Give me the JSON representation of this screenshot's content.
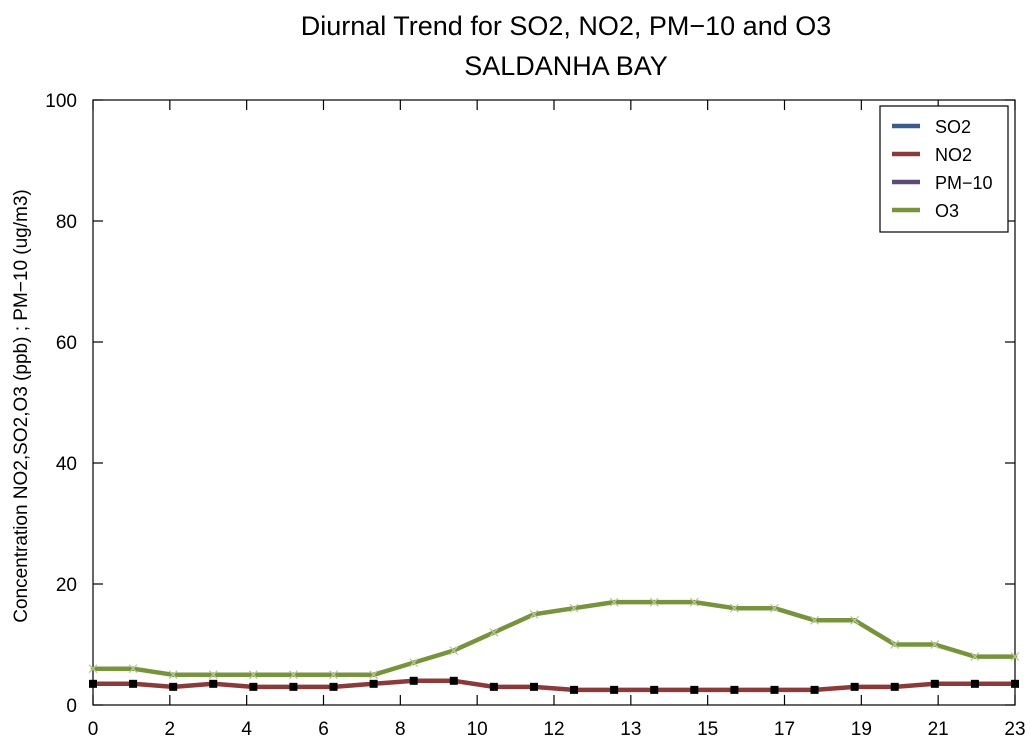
{
  "chart_data": {
    "type": "line",
    "title": "Diurnal Trend for SO2, NO2, PM−10 and O3",
    "subtitle": "SALDANHA BAY",
    "xlabel": "",
    "ylabel": "Concentration NO2,SO2,O3 (ppb) ; PM−10 (ug/m3)",
    "ylim": [
      0,
      100
    ],
    "y_ticks": [
      0,
      20,
      40,
      60,
      80,
      100
    ],
    "x_tick_labels": [
      "0",
      "2",
      "4",
      "6",
      "8",
      "10",
      "12",
      "13",
      "15",
      "17",
      "19",
      "21",
      "23"
    ],
    "x_count": 24,
    "grid": false,
    "legend_position": "top-right",
    "series": [
      {
        "name": "SO2",
        "color": "#3b5b8c",
        "values": []
      },
      {
        "name": "NO2",
        "color": "#8b3a3a",
        "marker": "square",
        "values": [
          3.5,
          3.5,
          3,
          3.5,
          3,
          3,
          3,
          3.5,
          4,
          4,
          3,
          3,
          2.5,
          2.5,
          2.5,
          2.5,
          2.5,
          2.5,
          2.5,
          3,
          3,
          3.5,
          3.5,
          3.5
        ]
      },
      {
        "name": "PM−10",
        "color": "#5b4a7a",
        "values": []
      },
      {
        "name": "O3",
        "color": "#77933c",
        "marker": "x",
        "values": [
          6,
          6,
          5,
          5,
          5,
          5,
          5,
          5,
          7,
          9,
          12,
          15,
          16,
          17,
          17,
          17,
          16,
          16,
          14,
          14,
          10,
          10,
          8,
          8
        ]
      }
    ]
  }
}
